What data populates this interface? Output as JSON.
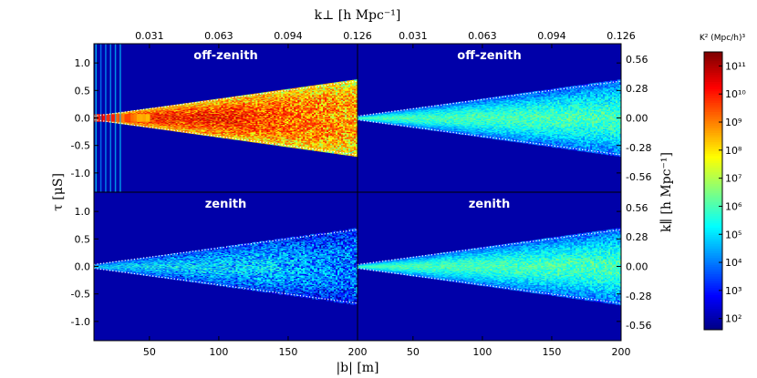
{
  "chart_data": {
    "type": "heatmap",
    "top_axis_label": "k⊥ [h Mpc⁻¹]",
    "x_axis_label": "|b| [m]",
    "left_axis_label": "τ [μS]",
    "right_axis_label": "k∥ [h Mpc⁻¹]",
    "colorbar_label": "K² (Mpc/h)³",
    "xlim": [
      10,
      200
    ],
    "ylim": [
      -1.35,
      1.35
    ],
    "x_ticks": [
      50,
      100,
      150,
      200
    ],
    "y_ticks": [
      1.0,
      0.5,
      0.0,
      -0.5,
      -1.0
    ],
    "top_ticks": [
      "0.031",
      "0.063",
      "0.094",
      "0.126"
    ],
    "right_ticks": [
      "0.56",
      "0.28",
      "0.00",
      "-0.28",
      "-0.56"
    ],
    "colorbar_ticks": [
      "10²",
      "10³",
      "10⁴",
      "10⁵",
      "10⁶",
      "10⁷",
      "10⁸",
      "10⁹",
      "10¹⁰",
      "10¹¹"
    ],
    "colorbar_range_log10": [
      1.6,
      11.5
    ],
    "horizon_delay_at_200m": 0.67,
    "panels": [
      {
        "row": 0,
        "col": 0,
        "label": "off-zenith",
        "core_log10": 10.5,
        "fade_start": 110
      },
      {
        "row": 0,
        "col": 1,
        "label": "off-zenith",
        "core_log10": 6.0,
        "fade_start": 999
      },
      {
        "row": 1,
        "col": 0,
        "label": "zenith",
        "core_log10": 5.5,
        "fade_start": 130
      },
      {
        "row": 1,
        "col": 1,
        "label": "zenith",
        "core_log10": 6.0,
        "fade_start": 999
      }
    ]
  }
}
